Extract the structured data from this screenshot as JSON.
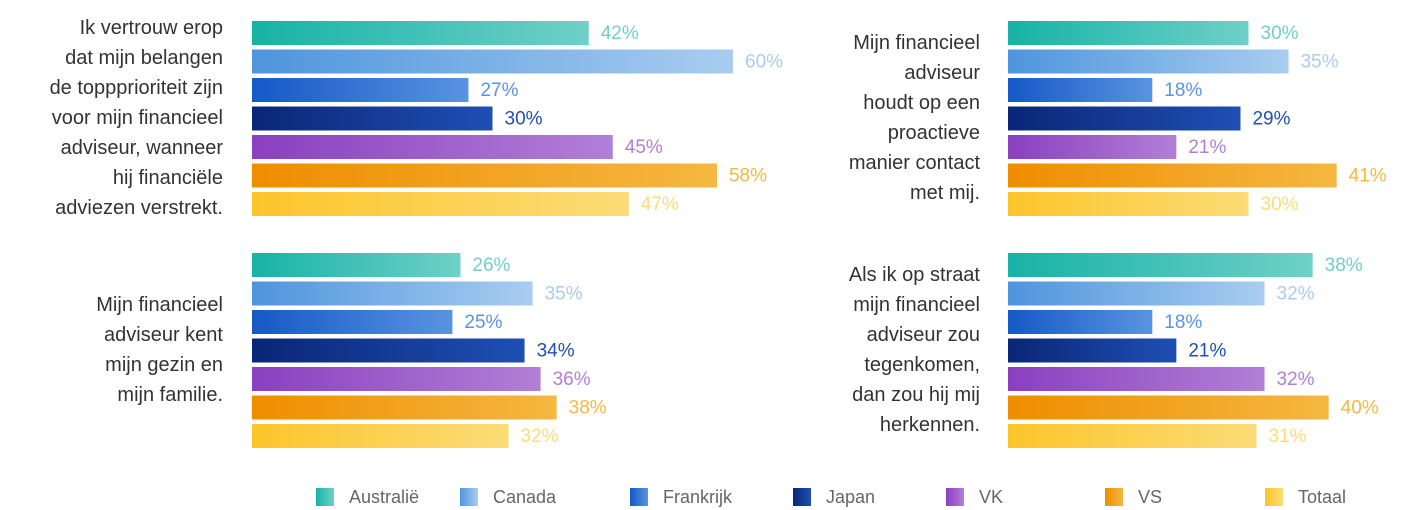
{
  "chart_data": [
    {
      "type": "bar",
      "title": [
        "Ik vertrouw erop",
        "dat mijn belangen",
        "de toppprioriteit zijn",
        "voor mijn financieel",
        "adviseur, wanneer",
        "hij financiële",
        "adviezen verstrekt."
      ],
      "values": [
        42,
        60,
        27,
        30,
        45,
        58,
        47
      ],
      "value_labels": [
        "42%",
        "60%",
        "27%",
        "30%",
        "45%",
        "58%",
        "47%"
      ],
      "xlim": [
        0,
        60
      ]
    },
    {
      "type": "bar",
      "title": [
        "Mijn financieel",
        "adviseur",
        "houdt op een",
        "proactieve",
        "manier contact",
        "met mij."
      ],
      "values": [
        30,
        35,
        18,
        29,
        21,
        41,
        30
      ],
      "value_labels": [
        "30%",
        "35%",
        "18%",
        "29%",
        "21%",
        "41%",
        "30%"
      ],
      "xlim": [
        0,
        60
      ]
    },
    {
      "type": "bar",
      "title": [
        "Mijn financieel",
        "adviseur kent",
        "mijn gezin en",
        "mijn familie."
      ],
      "values": [
        26,
        35,
        25,
        34,
        36,
        38,
        32
      ],
      "value_labels": [
        "26%",
        "35%",
        "25%",
        "34%",
        "36%",
        "38%",
        "32%"
      ],
      "xlim": [
        0,
        60
      ]
    },
    {
      "type": "bar",
      "title": [
        "Als ik op straat",
        "mijn financieel",
        "adviseur zou",
        "tegenkomen,",
        "dan zou hij mij",
        "herkennen."
      ],
      "values": [
        38,
        32,
        18,
        21,
        32,
        40,
        31
      ],
      "value_labels": [
        "38%",
        "32%",
        "18%",
        "21%",
        "32%",
        "40%",
        "31%"
      ],
      "xlim": [
        0,
        60
      ]
    }
  ],
  "legend": {
    "items": [
      {
        "name": "Australië",
        "color": "#17b3a6",
        "light": "#6fd0c8"
      },
      {
        "name": "Canada",
        "color": "#4e95dd",
        "light": "#a9cdf0"
      },
      {
        "name": "Frankrijk",
        "color": "#1558c7",
        "light": "#5a93e0"
      },
      {
        "name": "Japan",
        "color": "#0a2676",
        "light": "#1f4fb4"
      },
      {
        "name": "VK",
        "color": "#8a3fc0",
        "light": "#b27fd6"
      },
      {
        "name": "VS",
        "color": "#ef8d00",
        "light": "#f5b840"
      },
      {
        "name": "Totaal",
        "color": "#fcc52a",
        "light": "#fcdc78"
      }
    ]
  }
}
